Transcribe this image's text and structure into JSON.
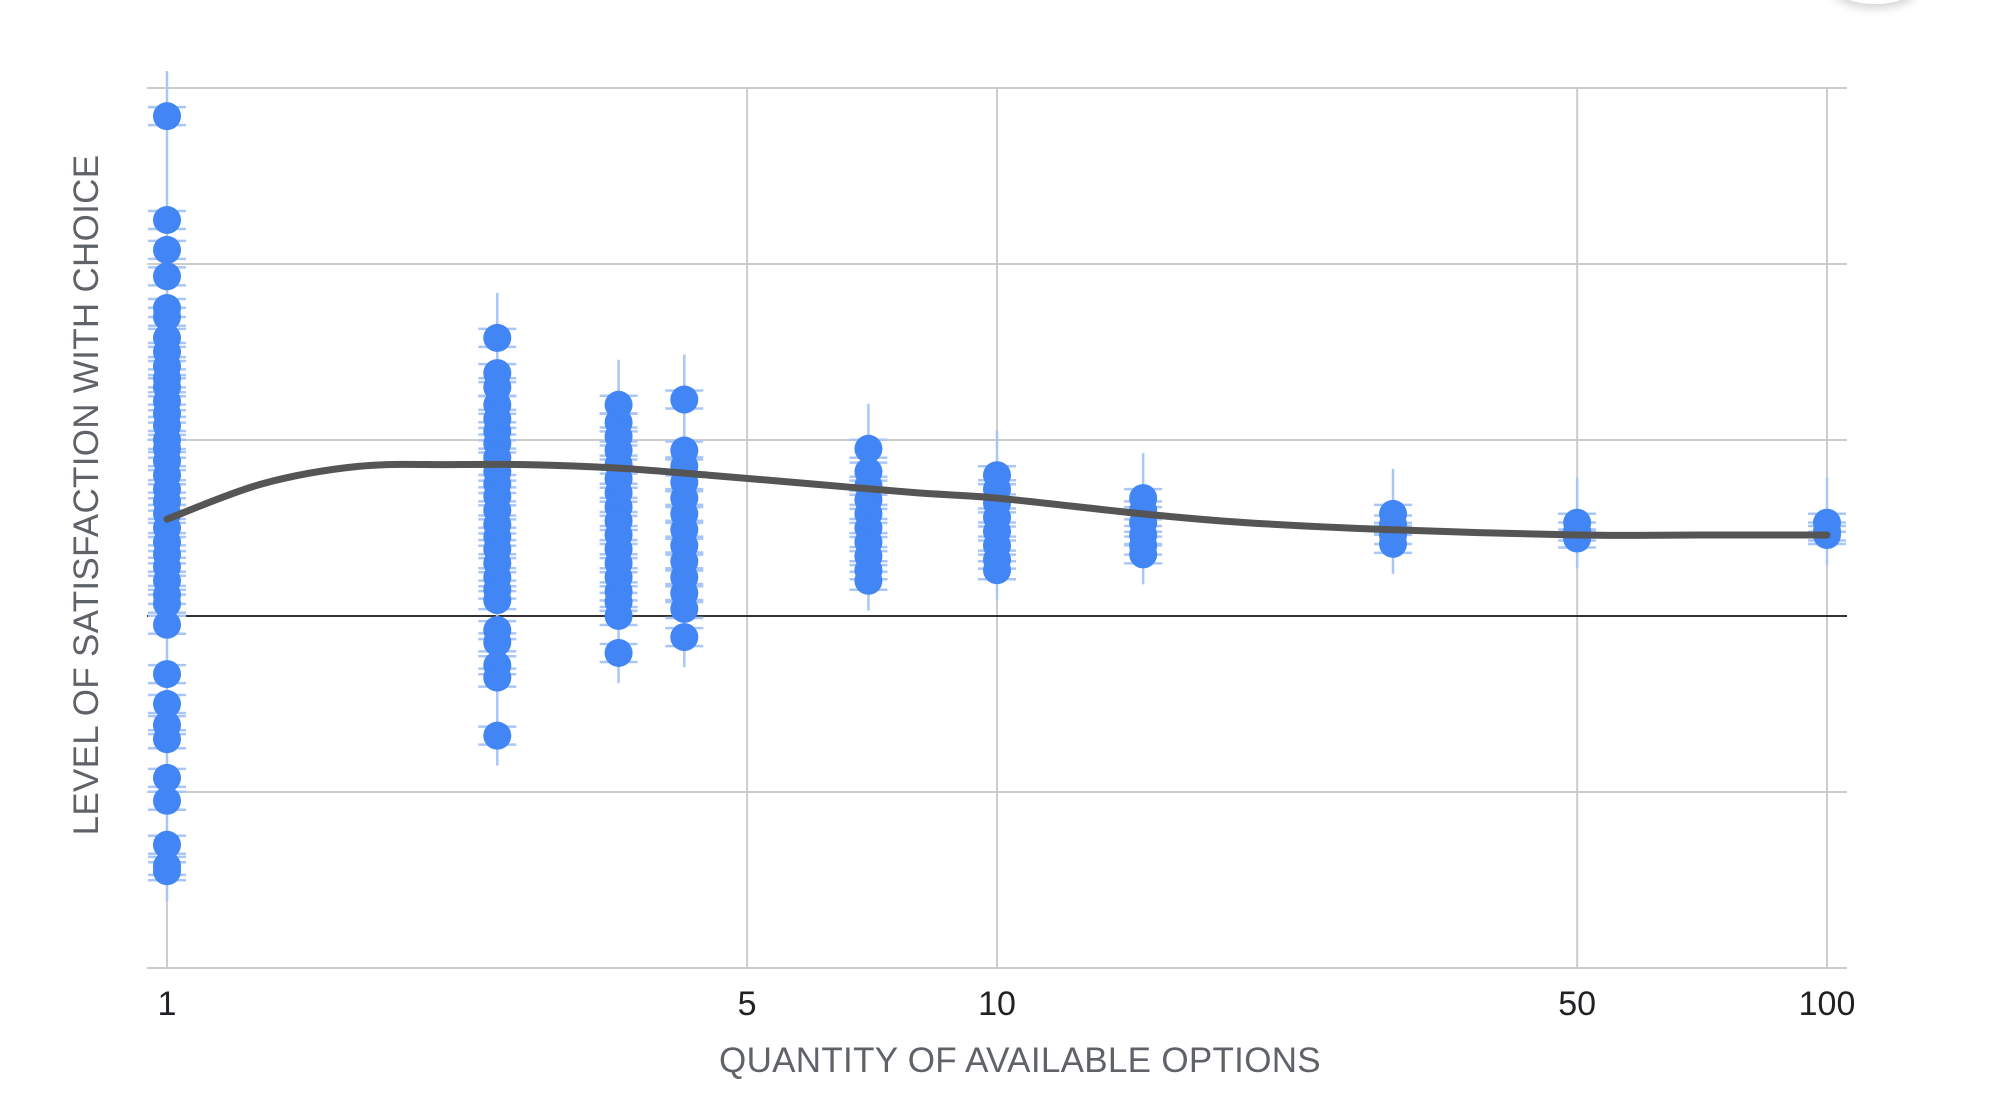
{
  "chart_data": {
    "type": "scatter",
    "title": "",
    "xlabel": "QUANTITY OF AVAILABLE OPTIONS",
    "ylabel": "LEVEL OF SATISFACTION WITH CHOICE",
    "x_scale": "log",
    "x_ticks": [
      1,
      5,
      10,
      50,
      100
    ],
    "x_tick_labels": [
      "1",
      "5",
      "10",
      "50",
      "100"
    ],
    "xlim": [
      1,
      100
    ],
    "ylim": [
      -2,
      3
    ],
    "y_gridlines": [
      -2,
      -1,
      0,
      1,
      2,
      3
    ],
    "zero_line": 0,
    "grid": true,
    "y_tick_labels_shown": false,
    "colors": {
      "points": "#4285f4",
      "error_bars": "#aac6f8",
      "trend": "#555555",
      "grid": "#cccccc",
      "zero_line": "#333333"
    },
    "series": [
      {
        "kind": "points_with_error_bars",
        "groups": [
          {
            "x": 1,
            "y": [
              2.84,
              2.25,
              2.08,
              1.93,
              1.75,
              1.7,
              1.58,
              1.5,
              1.42,
              1.35,
              1.3,
              1.22,
              1.15,
              1.08,
              1.0,
              0.95,
              0.88,
              0.8,
              0.72,
              0.65,
              0.58,
              0.5,
              0.42,
              0.35,
              0.28,
              0.2,
              0.12,
              0.07,
              -0.05,
              -0.33,
              -0.5,
              -0.62,
              -0.7,
              -0.92,
              -1.05,
              -1.3,
              -1.42,
              -1.45
            ]
          },
          {
            "x": 2.5,
            "y": [
              1.58,
              1.38,
              1.3,
              1.2,
              1.12,
              1.05,
              0.98,
              0.9,
              0.82,
              0.75,
              0.68,
              0.6,
              0.52,
              0.45,
              0.38,
              0.3,
              0.22,
              0.15,
              0.09,
              -0.08,
              -0.15,
              -0.28,
              -0.35,
              -0.68
            ]
          },
          {
            "x": 3.5,
            "y": [
              1.2,
              1.1,
              1.02,
              0.94,
              0.86,
              0.78,
              0.7,
              0.62,
              0.54,
              0.46,
              0.38,
              0.3,
              0.22,
              0.14,
              0.08,
              0.0,
              -0.21
            ]
          },
          {
            "x": 4.2,
            "y": [
              1.23,
              0.94,
              0.85,
              0.76,
              0.67,
              0.58,
              0.49,
              0.4,
              0.31,
              0.22,
              0.13,
              0.04,
              -0.12
            ]
          },
          {
            "x": 7,
            "y": [
              0.95,
              0.82,
              0.74,
              0.66,
              0.58,
              0.5,
              0.42,
              0.34,
              0.26,
              0.2
            ]
          },
          {
            "x": 10,
            "y": [
              0.8,
              0.72,
              0.64,
              0.56,
              0.48,
              0.4,
              0.32,
              0.26
            ]
          },
          {
            "x": 15,
            "y": [
              0.67,
              0.6,
              0.53,
              0.46,
              0.4,
              0.35
            ]
          },
          {
            "x": 30,
            "y": [
              0.58,
              0.52,
              0.46,
              0.41
            ]
          },
          {
            "x": 50,
            "y": [
              0.53,
              0.48,
              0.44
            ]
          },
          {
            "x": 100,
            "y": [
              0.53,
              0.48,
              0.46
            ]
          }
        ]
      },
      {
        "kind": "trend_line",
        "x": [
          1,
          1.3,
          1.7,
          2.2,
          2.7,
          3.5,
          4.5,
          6,
          8,
          10,
          15,
          20,
          30,
          50,
          70,
          100
        ],
        "y": [
          0.55,
          0.75,
          0.85,
          0.86,
          0.86,
          0.84,
          0.8,
          0.75,
          0.7,
          0.67,
          0.58,
          0.53,
          0.49,
          0.46,
          0.46,
          0.46
        ]
      }
    ]
  }
}
